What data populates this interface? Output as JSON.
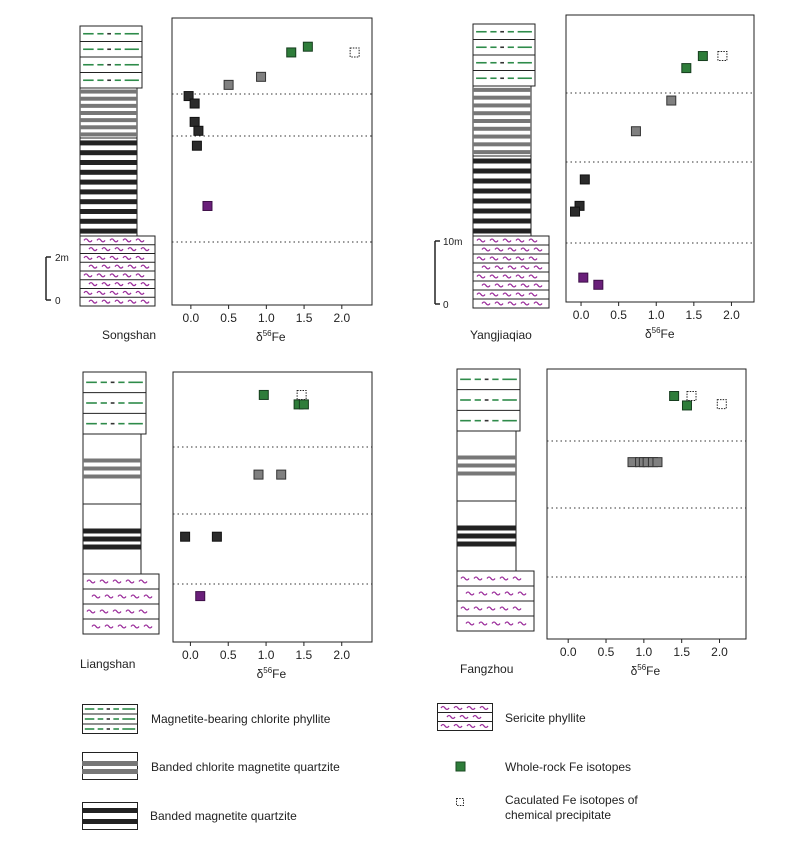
{
  "colors": {
    "magnetite_layer": "#222222",
    "chlorite_magnetite_layer": "#777777",
    "phyllite_green": "#2e8b4a",
    "sericite_purple": "#9b2d9b",
    "whole_rock": "#2e7d3a",
    "sericite_point": "#6a1f7a",
    "black_point": "#2b2b2b",
    "gray_point": "#808080"
  },
  "chart_data": [
    {
      "type": "scatter",
      "site": "Songshan",
      "xlabel": "δ56Fe",
      "xticks": [
        "0.0",
        "0.5",
        "1.0",
        "1.5",
        "2.0"
      ],
      "xlim": [
        -0.25,
        2.4
      ],
      "scale_bar": {
        "top": "2m",
        "bottom": "0"
      },
      "points": [
        {
          "x": 1.33,
          "row": 0.12,
          "kind": "whole-rock"
        },
        {
          "x": 1.55,
          "row": 0.1,
          "kind": "whole-rock"
        },
        {
          "x": 2.17,
          "row": 0.12,
          "kind": "calculated"
        },
        {
          "x": 0.93,
          "row": 0.205,
          "kind": "gray"
        },
        {
          "x": 0.5,
          "row": 0.233,
          "kind": "gray"
        },
        {
          "x": -0.03,
          "row": 0.272,
          "kind": "black"
        },
        {
          "x": 0.05,
          "row": 0.298,
          "kind": "black"
        },
        {
          "x": 0.05,
          "row": 0.362,
          "kind": "black"
        },
        {
          "x": 0.1,
          "row": 0.393,
          "kind": "black"
        },
        {
          "x": 0.08,
          "row": 0.445,
          "kind": "black"
        },
        {
          "x": 0.22,
          "row": 0.655,
          "kind": "sericite"
        }
      ]
    },
    {
      "type": "scatter",
      "site": "Yangjiaqiao",
      "xlabel": "δ56Fe",
      "xticks": [
        "0.0",
        "0.5",
        "1.0",
        "1.5",
        "2.0"
      ],
      "xlim": [
        -0.2,
        2.3
      ],
      "scale_bar": {
        "top": "10m",
        "bottom": "0"
      },
      "points": [
        {
          "x": 1.4,
          "row": 0.185,
          "kind": "whole-rock"
        },
        {
          "x": 1.62,
          "row": 0.143,
          "kind": "whole-rock"
        },
        {
          "x": 1.88,
          "row": 0.143,
          "kind": "calculated"
        },
        {
          "x": 1.2,
          "row": 0.298,
          "kind": "gray"
        },
        {
          "x": 0.73,
          "row": 0.405,
          "kind": "gray"
        },
        {
          "x": 0.05,
          "row": 0.573,
          "kind": "black"
        },
        {
          "x": -0.02,
          "row": 0.665,
          "kind": "black"
        },
        {
          "x": -0.08,
          "row": 0.685,
          "kind": "black"
        },
        {
          "x": 0.03,
          "row": 0.915,
          "kind": "sericite"
        },
        {
          "x": 0.23,
          "row": 0.94,
          "kind": "sericite"
        }
      ]
    },
    {
      "type": "scatter",
      "site": "Liangshan",
      "xlabel": "δ56Fe",
      "xticks": [
        "0.0",
        "0.5",
        "1.0",
        "1.5",
        "2.0"
      ],
      "xlim": [
        -0.23,
        2.4
      ],
      "points": [
        {
          "x": 0.97,
          "row": 0.085,
          "kind": "whole-rock"
        },
        {
          "x": 1.43,
          "row": 0.12,
          "kind": "whole-rock"
        },
        {
          "x": 1.5,
          "row": 0.12,
          "kind": "whole-rock"
        },
        {
          "x": 1.47,
          "row": 0.085,
          "kind": "calculated"
        },
        {
          "x": 0.9,
          "row": 0.38,
          "kind": "gray"
        },
        {
          "x": 1.2,
          "row": 0.38,
          "kind": "gray"
        },
        {
          "x": -0.07,
          "row": 0.61,
          "kind": "black"
        },
        {
          "x": 0.35,
          "row": 0.61,
          "kind": "black"
        },
        {
          "x": 0.13,
          "row": 0.83,
          "kind": "sericite"
        }
      ]
    },
    {
      "type": "scatter",
      "site": "Fangzhou",
      "xlabel": "δ56Fe",
      "xticks": [
        "0.0",
        "0.5",
        "1.0",
        "1.5",
        "2.0"
      ],
      "xlim": [
        -0.28,
        2.35
      ],
      "points": [
        {
          "x": 1.4,
          "row": 0.1,
          "kind": "whole-rock"
        },
        {
          "x": 1.57,
          "row": 0.135,
          "kind": "whole-rock"
        },
        {
          "x": 1.63,
          "row": 0.1,
          "kind": "calculated"
        },
        {
          "x": 2.03,
          "row": 0.13,
          "kind": "calculated"
        },
        {
          "x": 0.85,
          "row": 0.345,
          "kind": "gray"
        },
        {
          "x": 0.95,
          "row": 0.345,
          "kind": "gray"
        },
        {
          "x": 1.0,
          "row": 0.345,
          "kind": "gray"
        },
        {
          "x": 1.05,
          "row": 0.345,
          "kind": "gray"
        },
        {
          "x": 1.12,
          "row": 0.345,
          "kind": "gray"
        },
        {
          "x": 1.18,
          "row": 0.345,
          "kind": "gray"
        }
      ]
    }
  ],
  "legend": {
    "magnetite_phyllite": "Magnetite-bearing chlorite phyllite",
    "banded_chlorite": "Banded chlorite magnetite quartzite",
    "banded_magnetite": "Banded magnetite quartzite",
    "sericite": "Sericite phyllite",
    "whole_rock": "Whole-rock Fe isotopes",
    "calculated_line1": "Caculated Fe isotopes of",
    "calculated_line2": "chemical precipitate"
  }
}
